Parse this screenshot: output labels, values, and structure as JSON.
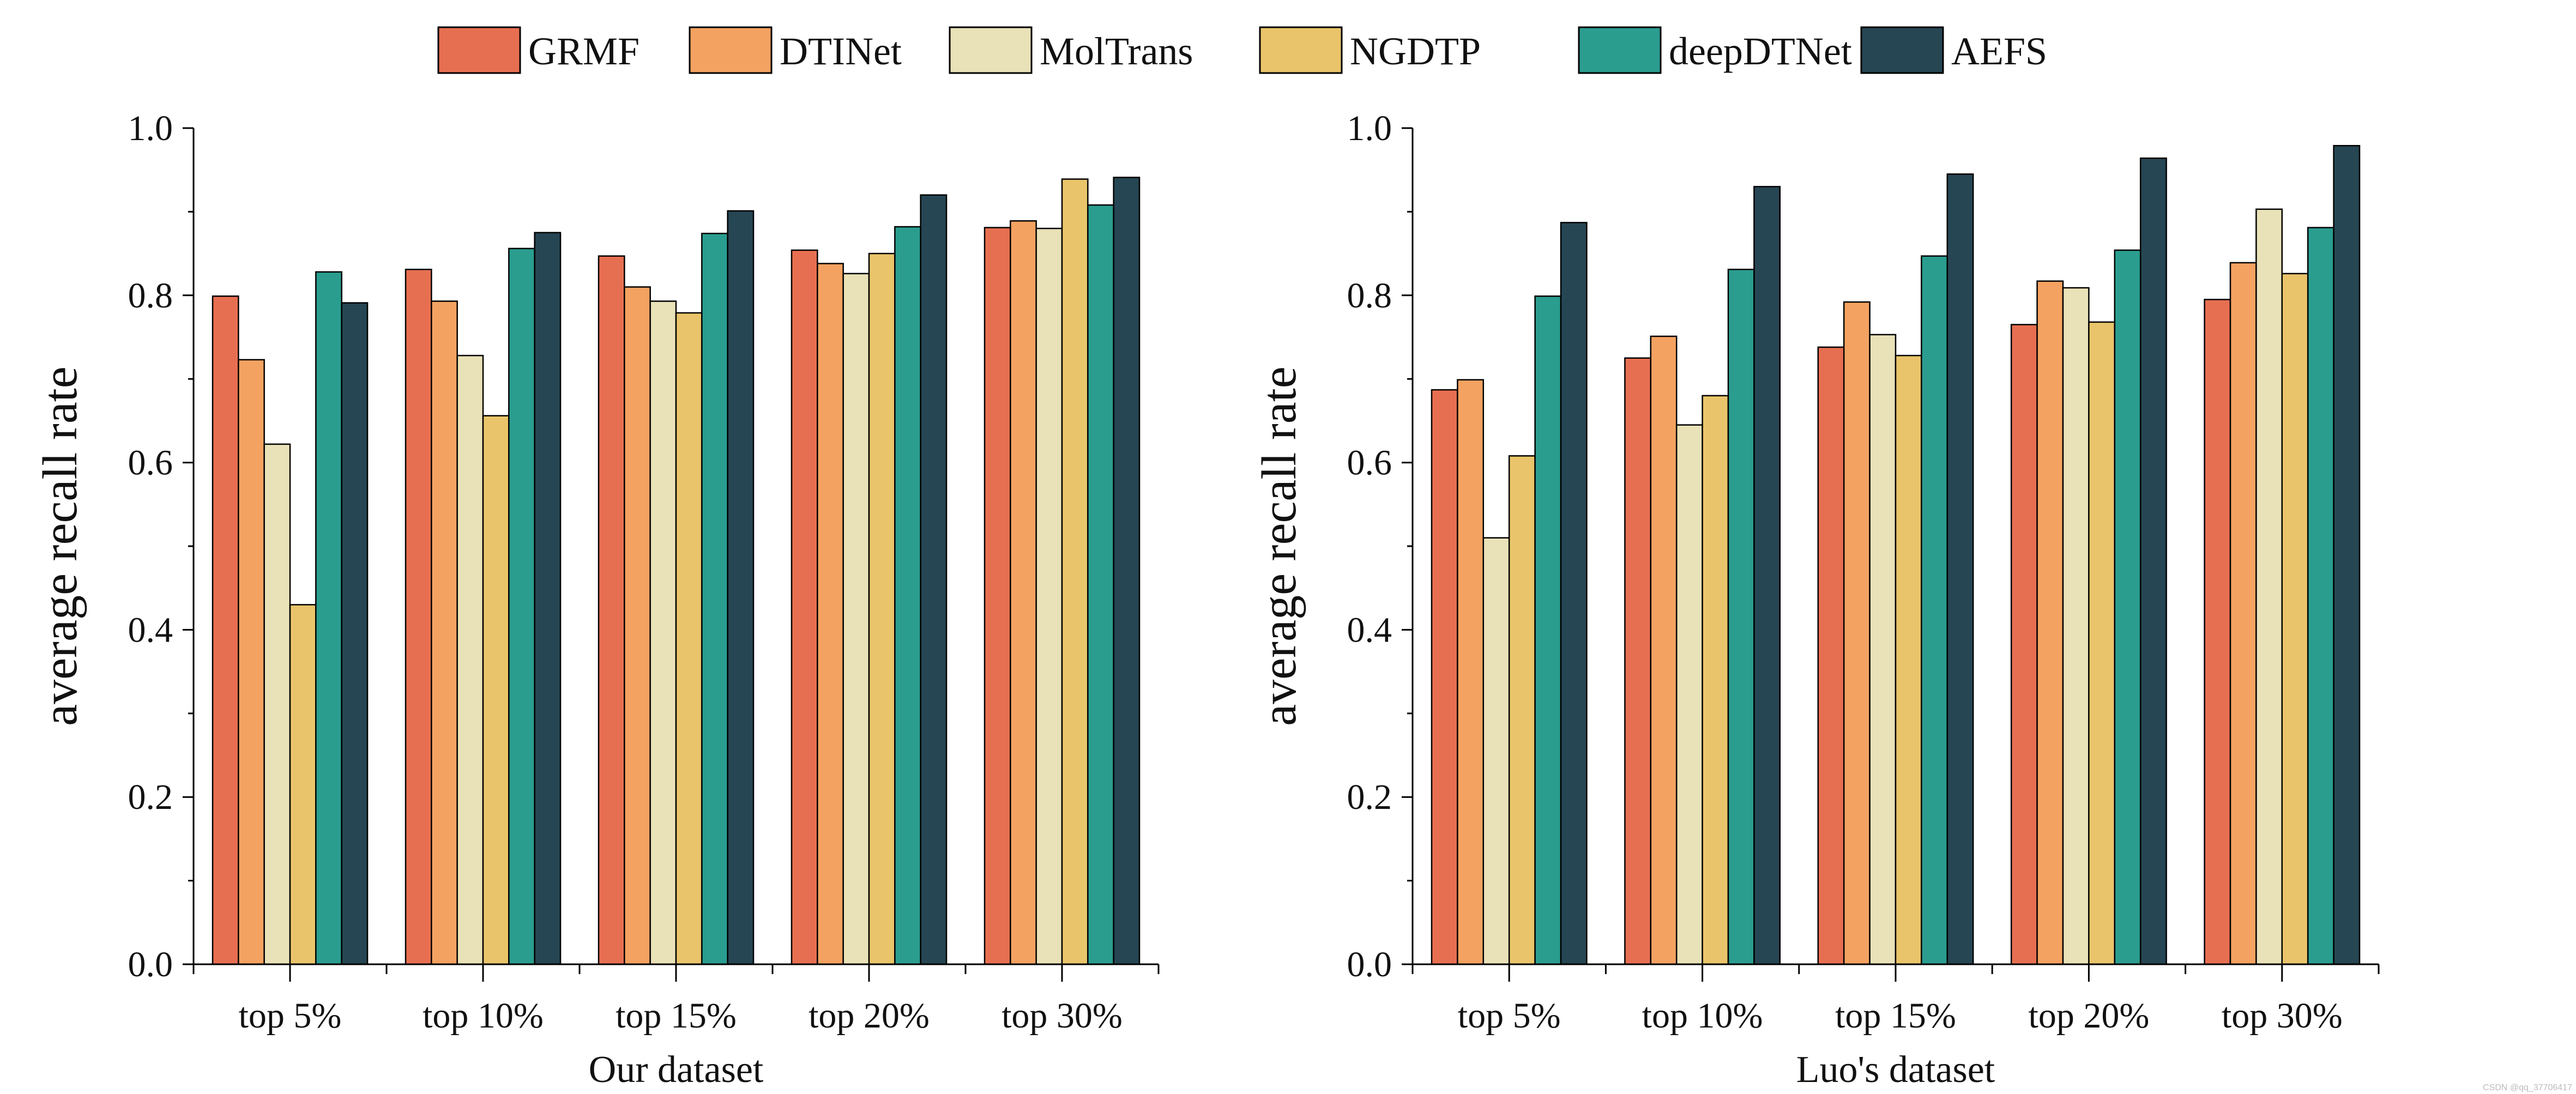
{
  "legend": {
    "position": "top-center",
    "items": [
      {
        "name": "GRMF",
        "color": "#E76F51"
      },
      {
        "name": "DTINet",
        "color": "#F4A261"
      },
      {
        "name": "MolTrans",
        "color": "#E9E1B7"
      },
      {
        "name": "NGDTP",
        "color": "#E9C46A"
      },
      {
        "name": "deepDTNet",
        "color": "#2A9D8F"
      },
      {
        "name": "AEFS",
        "color": "#264653"
      }
    ]
  },
  "watermark": "CSDN @qq_37706417",
  "chart_data": [
    {
      "type": "bar",
      "xlabel": "Our dataset",
      "ylabel": "average recall rate",
      "ylim": [
        0,
        1.0
      ],
      "yticks": [
        "0.0",
        "0.2",
        "0.4",
        "0.6",
        "0.8",
        "1.0"
      ],
      "grid": false,
      "categories": [
        "top 5%",
        "top 10%",
        "top 15%",
        "top 20%",
        "top 30%"
      ],
      "series": [
        {
          "name": "GRMF",
          "values": [
            0.799,
            0.831,
            0.847,
            0.854,
            0.881
          ]
        },
        {
          "name": "DTINet",
          "values": [
            0.723,
            0.793,
            0.81,
            0.838,
            0.889
          ]
        },
        {
          "name": "MolTrans",
          "values": [
            0.622,
            0.728,
            0.793,
            0.826,
            0.88
          ]
        },
        {
          "name": "NGDTP",
          "values": [
            0.43,
            0.656,
            0.779,
            0.85,
            0.939
          ]
        },
        {
          "name": "deepDTNet",
          "values": [
            0.828,
            0.856,
            0.874,
            0.882,
            0.908
          ]
        },
        {
          "name": "AEFS",
          "values": [
            0.791,
            0.875,
            0.901,
            0.92,
            0.941
          ]
        }
      ]
    },
    {
      "type": "bar",
      "xlabel": "Luo's dataset",
      "ylabel": "average recall rate",
      "ylim": [
        0,
        1.0
      ],
      "yticks": [
        "0.0",
        "0.2",
        "0.4",
        "0.6",
        "0.8",
        "1.0"
      ],
      "grid": false,
      "categories": [
        "top 5%",
        "top 10%",
        "top 15%",
        "top 20%",
        "top 30%"
      ],
      "series": [
        {
          "name": "GRMF",
          "values": [
            0.687,
            0.725,
            0.738,
            0.765,
            0.795
          ]
        },
        {
          "name": "DTINet",
          "values": [
            0.699,
            0.751,
            0.792,
            0.817,
            0.839
          ]
        },
        {
          "name": "MolTrans",
          "values": [
            0.51,
            0.645,
            0.753,
            0.809,
            0.903
          ]
        },
        {
          "name": "NGDTP",
          "values": [
            0.608,
            0.68,
            0.728,
            0.768,
            0.826
          ]
        },
        {
          "name": "deepDTNet",
          "values": [
            0.799,
            0.831,
            0.847,
            0.854,
            0.881
          ]
        },
        {
          "name": "AEFS",
          "values": [
            0.887,
            0.93,
            0.945,
            0.964,
            0.979
          ]
        }
      ]
    }
  ]
}
